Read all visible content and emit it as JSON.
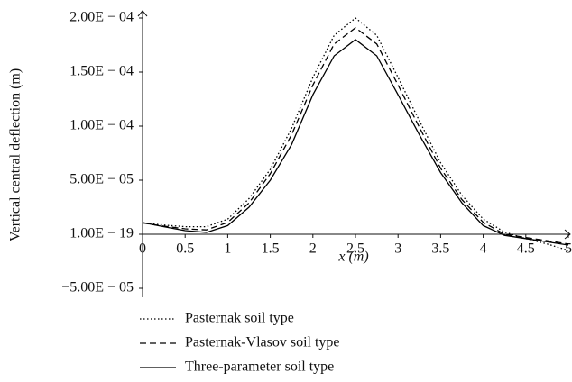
{
  "chart_data": {
    "type": "line",
    "y_label": "Vertical central deflection (m)",
    "x_label": "x (m)",
    "x": [
      0,
      0.25,
      0.5,
      0.75,
      1,
      1.25,
      1.5,
      1.75,
      2,
      2.25,
      2.5,
      2.75,
      3,
      3.25,
      3.5,
      3.75,
      4,
      4.25,
      4.5,
      4.75,
      5
    ],
    "series": [
      {
        "name": "Pasternak soil type",
        "color": "#000000",
        "dash": "dotted",
        "values": [
          1.05e-05,
          8.5e-06,
          7e-06,
          7e-06,
          1.4e-05,
          3.3e-05,
          6e-05,
          9.8e-05,
          0.000145,
          0.000184,
          0.0002,
          0.000184,
          0.000145,
          0.000105,
          6.6e-05,
          3.6e-05,
          1.4e-05,
          2e-06,
          -4e-06,
          -9e-06,
          -1.5e-05
        ]
      },
      {
        "name": "Pasternak-Vlasov soil type",
        "color": "#000000",
        "dash": "dashed",
        "values": [
          1.05e-05,
          7.5e-06,
          5e-06,
          4e-06,
          1.1e-05,
          2.9e-05,
          5.6e-05,
          9.2e-05,
          0.000138,
          0.000176,
          0.000191,
          0.000176,
          0.000138,
          9.9e-05,
          6.1e-05,
          3.2e-05,
          1.1e-05,
          0,
          -3e-06,
          -6e-06,
          -9e-06
        ]
      },
      {
        "name": "Three-parameter soil type",
        "color": "#000000",
        "dash": "solid",
        "values": [
          1.08e-05,
          7e-06,
          3.3e-06,
          1.7e-06,
          8e-06,
          2.5e-05,
          5e-05,
          8.3e-05,
          0.000129,
          0.000165,
          0.00018,
          0.000165,
          0.000129,
          9.2e-05,
          5.7e-05,
          2.9e-05,
          8e-06,
          -1e-06,
          -4e-06,
          -7e-06,
          -1e-05
        ]
      }
    ],
    "xlim": [
      0,
      5
    ],
    "xticks": [
      0,
      0.5,
      1,
      1.5,
      2,
      2.5,
      3,
      3.5,
      4,
      4.5,
      5
    ],
    "ylim": [
      -5e-05,
      0.0002
    ],
    "yticks": [
      {
        "value": -5e-05,
        "label": "−5.00E − 05"
      },
      {
        "value": 1e-19,
        "label": "1.00E − 19"
      },
      {
        "value": 5e-05,
        "label": "5.00E − 05"
      },
      {
        "value": 0.0001,
        "label": "1.00E − 04"
      },
      {
        "value": 0.00015,
        "label": "1.50E − 04"
      },
      {
        "value": 0.0002,
        "label": "2.00E − 04"
      }
    ],
    "grid": false
  }
}
